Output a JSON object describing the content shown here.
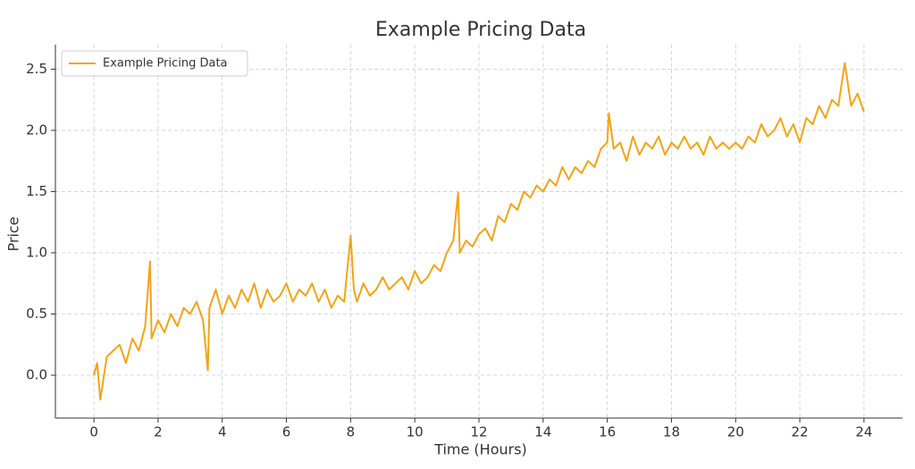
{
  "chart_data": {
    "type": "line",
    "title": "Example Pricing Data",
    "xlabel": "Time (Hours)",
    "ylabel": "Price",
    "x": [
      0,
      0.1,
      0.2,
      0.4,
      0.6,
      0.8,
      1.0,
      1.2,
      1.4,
      1.6,
      1.75,
      1.8,
      2.0,
      2.2,
      2.4,
      2.6,
      2.8,
      3.0,
      3.2,
      3.4,
      3.55,
      3.6,
      3.8,
      4.0,
      4.2,
      4.4,
      4.6,
      4.8,
      5.0,
      5.2,
      5.4,
      5.6,
      5.8,
      6.0,
      6.2,
      6.4,
      6.6,
      6.8,
      7.0,
      7.2,
      7.4,
      7.6,
      7.8,
      8.0,
      8.1,
      8.2,
      8.4,
      8.6,
      8.8,
      9.0,
      9.2,
      9.4,
      9.6,
      9.8,
      10.0,
      10.2,
      10.4,
      10.6,
      10.8,
      11.0,
      11.2,
      11.35,
      11.4,
      11.6,
      11.8,
      12.0,
      12.2,
      12.4,
      12.6,
      12.8,
      13.0,
      13.2,
      13.4,
      13.6,
      13.8,
      14.0,
      14.2,
      14.4,
      14.6,
      14.8,
      15.0,
      15.2,
      15.4,
      15.6,
      15.8,
      16.0,
      16.05,
      16.2,
      16.4,
      16.6,
      16.8,
      17.0,
      17.2,
      17.4,
      17.6,
      17.8,
      18.0,
      18.2,
      18.4,
      18.6,
      18.8,
      19.0,
      19.2,
      19.4,
      19.6,
      19.8,
      20.0,
      20.2,
      20.4,
      20.6,
      20.8,
      21.0,
      21.2,
      21.4,
      21.6,
      21.8,
      22.0,
      22.2,
      22.4,
      22.6,
      22.8,
      23.0,
      23.2,
      23.4,
      23.6,
      23.8,
      24.0
    ],
    "series": [
      {
        "name": "Example Pricing Data",
        "color": "#f5a314",
        "values": [
          0.0,
          0.1,
          -0.2,
          0.15,
          0.2,
          0.25,
          0.1,
          0.3,
          0.2,
          0.4,
          0.93,
          0.3,
          0.45,
          0.35,
          0.5,
          0.4,
          0.55,
          0.5,
          0.6,
          0.45,
          0.04,
          0.55,
          0.7,
          0.5,
          0.65,
          0.55,
          0.7,
          0.6,
          0.75,
          0.55,
          0.7,
          0.6,
          0.65,
          0.75,
          0.6,
          0.7,
          0.65,
          0.75,
          0.6,
          0.7,
          0.55,
          0.65,
          0.6,
          1.14,
          0.7,
          0.6,
          0.75,
          0.65,
          0.7,
          0.8,
          0.7,
          0.75,
          0.8,
          0.7,
          0.85,
          0.75,
          0.8,
          0.9,
          0.85,
          1.0,
          1.1,
          1.49,
          1.0,
          1.1,
          1.05,
          1.15,
          1.2,
          1.1,
          1.3,
          1.25,
          1.4,
          1.35,
          1.5,
          1.45,
          1.55,
          1.5,
          1.6,
          1.55,
          1.7,
          1.6,
          1.7,
          1.65,
          1.75,
          1.7,
          1.85,
          1.9,
          2.14,
          1.85,
          1.9,
          1.75,
          1.95,
          1.8,
          1.9,
          1.85,
          1.95,
          1.8,
          1.9,
          1.85,
          1.95,
          1.85,
          1.9,
          1.8,
          1.95,
          1.85,
          1.9,
          1.85,
          1.9,
          1.85,
          1.95,
          1.9,
          2.05,
          1.95,
          2.0,
          2.1,
          1.95,
          2.05,
          1.9,
          2.1,
          2.05,
          2.2,
          2.1,
          2.25,
          2.2,
          2.55,
          2.2,
          2.3,
          2.15
        ]
      }
    ],
    "xlim": [
      -1.2,
      25.2
    ],
    "ylim": [
      -0.35,
      2.7
    ],
    "xticks": [
      0,
      2,
      4,
      6,
      8,
      10,
      12,
      14,
      16,
      18,
      20,
      22,
      24
    ],
    "yticks": [
      {
        "value": 0,
        "label": "0.0"
      },
      0.5,
      {
        "value": 1,
        "label": "1.0"
      },
      1.5,
      {
        "value": 2,
        "label": "2.0"
      },
      2.5
    ],
    "grid": true,
    "legend": "upper left"
  }
}
